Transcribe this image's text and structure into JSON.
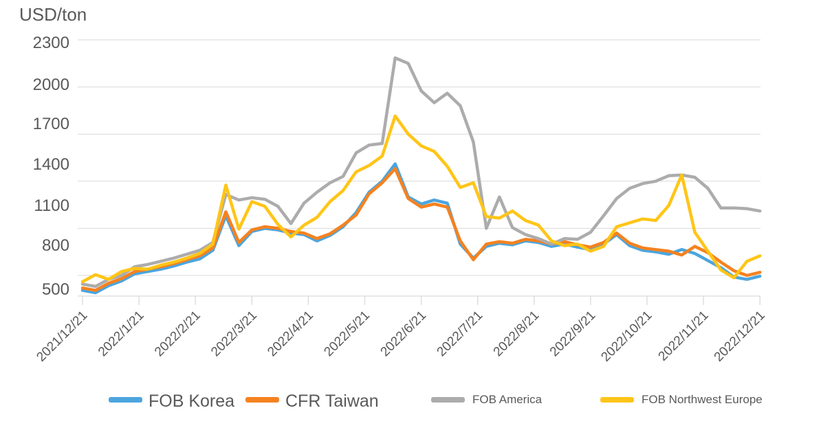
{
  "chart_data": {
    "type": "line",
    "title": "USD/ton",
    "y_axis_unit": "USD/ton",
    "y_ticks": [
      2300,
      2000,
      1700,
      1400,
      1100,
      800,
      500
    ],
    "ylim": [
      500,
      2300
    ],
    "grid": true,
    "legend_position": "bottom",
    "x_frequency": "weekly",
    "x_labels": [
      "2021/12/21",
      "2022/1/21",
      "2022/2/21",
      "2022/3/21",
      "2022/4/21",
      "2022/5/21",
      "2022/6/21",
      "2022/7/21",
      "2022/8/21",
      "2022/9/21",
      "2022/10/21",
      "2022/11/21",
      "2022/12/21"
    ],
    "series": [
      {
        "name": "FOB Korea",
        "color": "#4CA5DE",
        "legend_size": "large",
        "values": [
          705,
          690,
          735,
          765,
          810,
          825,
          840,
          860,
          885,
          905,
          960,
          1180,
          990,
          1080,
          1100,
          1090,
          1070,
          1060,
          1020,
          1055,
          1110,
          1200,
          1330,
          1400,
          1510,
          1300,
          1255,
          1280,
          1260,
          1000,
          910,
          985,
          1005,
          995,
          1020,
          1010,
          985,
          1000,
          980,
          965,
          1000,
          1060,
          990,
          960,
          950,
          935,
          965,
          940,
          895,
          850,
          790,
          775,
          795
        ]
      },
      {
        "name": "CFR Taiwan",
        "color": "#F58220",
        "legend_size": "large",
        "values": [
          720,
          705,
          750,
          780,
          825,
          840,
          855,
          875,
          900,
          925,
          975,
          1205,
          1010,
          1090,
          1110,
          1100,
          1080,
          1070,
          1035,
          1065,
          1120,
          1185,
          1320,
          1390,
          1480,
          1290,
          1235,
          1255,
          1235,
          1020,
          900,
          1000,
          1015,
          1005,
          1030,
          1020,
          1000,
          1015,
          995,
          980,
          1010,
          1070,
          1005,
          975,
          965,
          955,
          930,
          985,
          945,
          885,
          830,
          800,
          820
        ]
      },
      {
        "name": "FOB America",
        "color": "#ACACAC",
        "legend_size": "small",
        "values": [
          745,
          730,
          775,
          800,
          855,
          870,
          890,
          910,
          935,
          960,
          1010,
          1315,
          1280,
          1295,
          1285,
          1240,
          1130,
          1260,
          1330,
          1390,
          1430,
          1580,
          1630,
          1640,
          2185,
          2150,
          1975,
          1900,
          1960,
          1880,
          1650,
          1100,
          1300,
          1105,
          1060,
          1035,
          1000,
          1035,
          1030,
          1075,
          1180,
          1290,
          1355,
          1385,
          1400,
          1435,
          1440,
          1425,
          1355,
          1230,
          1230,
          1225,
          1210
        ]
      },
      {
        "name": "FOB Northwest Europe",
        "color": "#FFC517",
        "legend_size": "small",
        "values": [
          760,
          805,
          775,
          825,
          845,
          840,
          865,
          885,
          910,
          940,
          1000,
          1375,
          1095,
          1270,
          1240,
          1125,
          1045,
          1120,
          1170,
          1270,
          1340,
          1460,
          1500,
          1560,
          1815,
          1700,
          1625,
          1590,
          1495,
          1360,
          1390,
          1175,
          1165,
          1210,
          1150,
          1120,
          1020,
          990,
          1000,
          955,
          985,
          1110,
          1135,
          1160,
          1150,
          1245,
          1440,
          1075,
          955,
          835,
          785,
          890,
          925
        ]
      }
    ]
  },
  "colors": {
    "background": "#FFFFFF",
    "gridline": "#D9D9D9",
    "axis_line": "#D9D9D9",
    "axis_text": "#595959"
  }
}
